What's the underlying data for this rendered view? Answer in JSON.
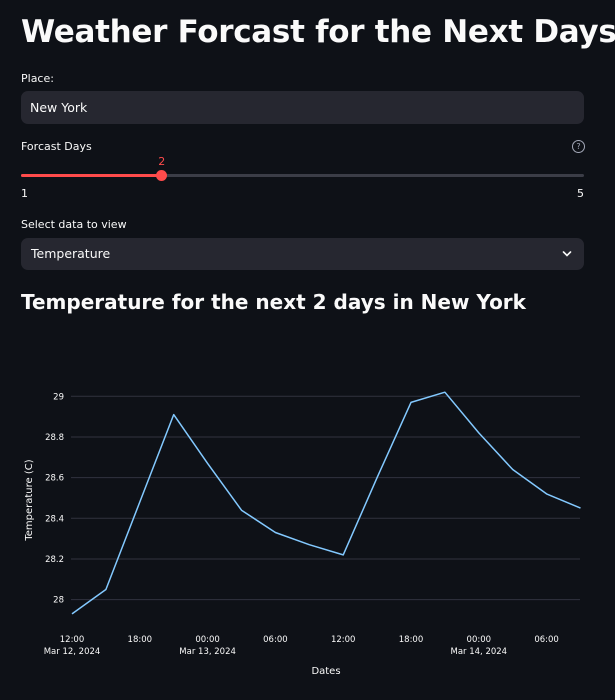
{
  "page": {
    "title": "Weather Forcast for the Next Days"
  },
  "place": {
    "label": "Place:",
    "value": "New York"
  },
  "forecast_days": {
    "label": "Forcast Days",
    "help_icon": "question-circle-icon",
    "value": 2,
    "min": 1,
    "max": 5,
    "accent_color": "#ff4b4b"
  },
  "data_select": {
    "label": "Select data to view",
    "selected": "Temperature",
    "chevron_icon": "chevron-down-icon"
  },
  "chart_title": "Temperature for the next 2 days in New York",
  "chart_data": {
    "type": "line",
    "xlabel": "Dates",
    "ylabel": "Temperature (C)",
    "ylim": [
      27.9,
      29.08
    ],
    "grid": true,
    "line_color": "#83c9ff",
    "y_ticks": [
      "28",
      "28.2",
      "28.4",
      "28.6",
      "28.8",
      "29"
    ],
    "x_ticks": [
      {
        "label": "12:00",
        "sub": "Mar 12, 2024"
      },
      {
        "label": "18:00",
        "sub": ""
      },
      {
        "label": "00:00",
        "sub": "Mar 13, 2024"
      },
      {
        "label": "06:00",
        "sub": ""
      },
      {
        "label": "12:00",
        "sub": ""
      },
      {
        "label": "18:00",
        "sub": ""
      },
      {
        "label": "00:00",
        "sub": "Mar 14, 2024"
      },
      {
        "label": "06:00",
        "sub": ""
      }
    ],
    "x": [
      "2024-03-12 12:00",
      "2024-03-12 15:00",
      "2024-03-12 18:00",
      "2024-03-12 21:00",
      "2024-03-13 00:00",
      "2024-03-13 03:00",
      "2024-03-13 06:00",
      "2024-03-13 09:00",
      "2024-03-13 12:00",
      "2024-03-13 15:00",
      "2024-03-13 18:00",
      "2024-03-13 21:00",
      "2024-03-14 00:00",
      "2024-03-14 03:00",
      "2024-03-14 06:00",
      "2024-03-14 09:00"
    ],
    "series": [
      {
        "values": [
          27.93,
          28.05,
          28.48,
          28.91,
          28.67,
          28.44,
          28.33,
          28.27,
          28.22,
          28.6,
          28.97,
          29.02,
          28.82,
          28.64,
          28.52,
          28.45
        ]
      }
    ]
  }
}
